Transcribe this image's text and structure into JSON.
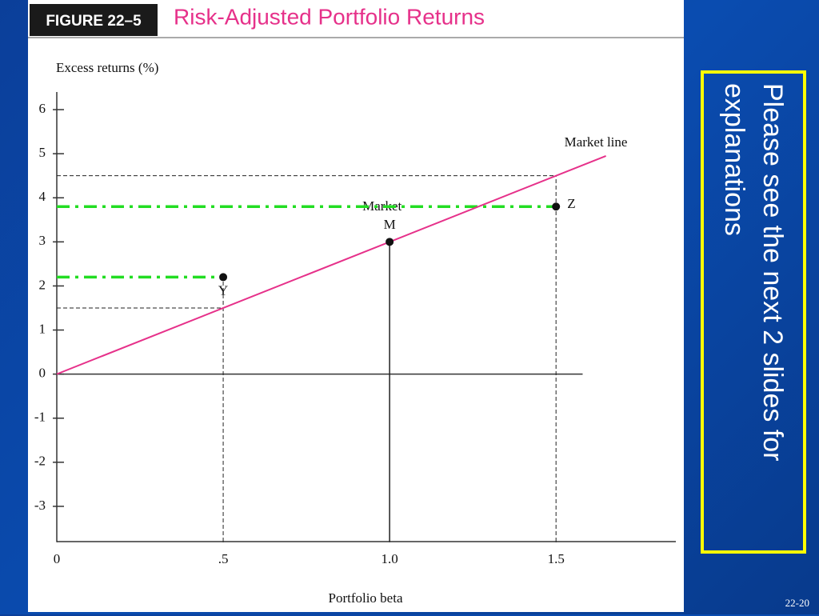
{
  "chart_data": {
    "type": "line",
    "figure_label": "FIGURE 22–5",
    "title": "Risk-Adjusted Portfolio Returns",
    "y_label": "Excess returns (%)",
    "x_label": "Portfolio beta",
    "xlim": [
      0,
      1.86
    ],
    "ylim": [
      -3.8,
      6.4
    ],
    "xticks": [
      0,
      {
        "value": 0.5,
        "label": ".5"
      },
      {
        "value": 1,
        "label": "1.0"
      },
      1.5
    ],
    "yticks": [
      6,
      5,
      4,
      3,
      2,
      1,
      0,
      -1,
      -2,
      -3
    ],
    "series": [
      {
        "name": "Market line",
        "color": "#e6318a",
        "x": [
          0,
          1.65
        ],
        "values": [
          0,
          4.95
        ]
      }
    ],
    "points": [
      {
        "label": "Y",
        "x": 0.5,
        "value": 2.2
      },
      {
        "label": "M",
        "x": 1,
        "value": 3,
        "caption": "Market"
      },
      {
        "label": "Z",
        "x": 1.5,
        "value": 3.8
      }
    ],
    "guide_color": "#22dd22"
  },
  "note": "Please see the next 2 slides for explanations",
  "slide_number": "22-20"
}
